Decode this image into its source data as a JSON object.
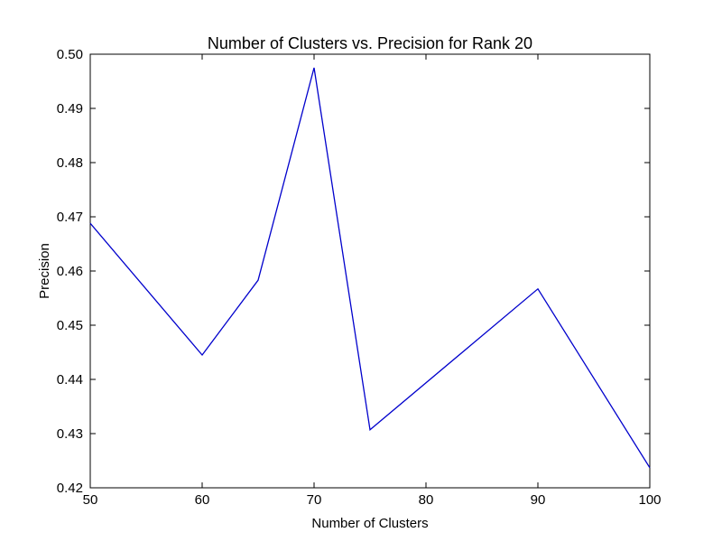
{
  "chart_data": {
    "type": "line",
    "title": "Number of Clusters vs. Precision for Rank 20",
    "xlabel": "Number of Clusters",
    "ylabel": "Precision",
    "xlim": [
      50,
      100
    ],
    "ylim": [
      0.42,
      0.5
    ],
    "xticks": [
      50,
      60,
      70,
      80,
      90,
      100
    ],
    "xtick_labels": [
      "50",
      "60",
      "70",
      "80",
      "90",
      "100"
    ],
    "yticks": [
      0.42,
      0.43,
      0.44,
      0.45,
      0.46,
      0.47,
      0.48,
      0.49,
      0.5
    ],
    "ytick_labels": [
      "0.42",
      "0.43",
      "0.44",
      "0.45",
      "0.46",
      "0.47",
      "0.48",
      "0.49",
      "0.50"
    ],
    "grid": false,
    "series": [
      {
        "color": "#0000cc",
        "x": [
          50,
          60,
          65,
          70,
          75,
          90,
          100
        ],
        "y": [
          0.4688,
          0.4445,
          0.4583,
          0.4975,
          0.4307,
          0.4567,
          0.4237
        ]
      }
    ]
  }
}
